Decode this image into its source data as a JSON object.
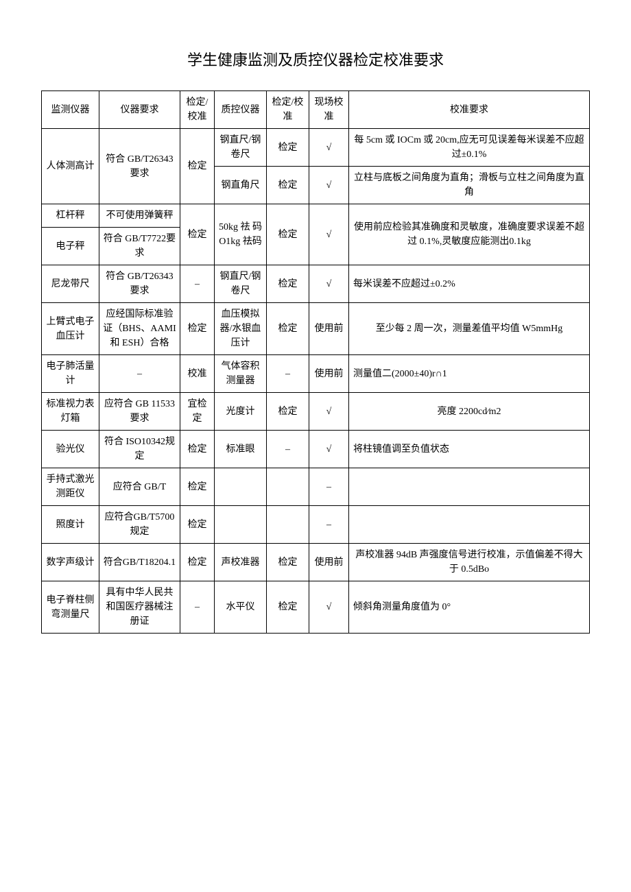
{
  "title": "学生健康监测及质控仪器检定校准要求",
  "headers": {
    "c1": "监测仪器",
    "c2": "仪器要求",
    "c3": "检定/校准",
    "c4": "质控仪器",
    "c5": "检定/校准",
    "c6": "现场校准",
    "c7": "校准要求"
  },
  "rows": {
    "r1": {
      "instrument": "人体测高计",
      "req": "符合 GB/T26343要求",
      "verify": "检定",
      "qc1": "钢直尺/钢卷尺",
      "qc1_verify": "检定",
      "qc1_onsite": "√",
      "qc1_calib": "每 5cm 或 IOCm 或 20cm,应无可见误差每米误差不应超过±0.1%",
      "qc2": "钢直角尺",
      "qc2_verify": "检定",
      "qc2_onsite": "√",
      "qc2_calib": "立柱与底板之间角度为直角；滑板与立柱之间角度为直角"
    },
    "r2": {
      "instrument1": "杠杆秤",
      "instrument2": "电子秤",
      "req1": "不可使用弹簧秤",
      "req2": "符合 GB/T7722要求",
      "verify": "检定",
      "qc": "50kg 祛 码O1kg 祛码",
      "qc_verify": "检定",
      "qc_onsite": "√",
      "qc_calib": "使用前应检验其准确度和灵敏度，准确度要求误差不超过 0.1%,灵敏度应能测出0.1kg"
    },
    "r3": {
      "instrument": "尼龙带尺",
      "req": "符合 GB/T26343要求",
      "verify": "–",
      "qc": "钢直尺/钢卷尺",
      "qc_verify": "检定",
      "qc_onsite": "√",
      "qc_calib": "每米误差不应超过±0.2%"
    },
    "r4": {
      "instrument": "上臂式电子血压计",
      "req": "应经国际标准验证（BHS、AAMI和 ESH）合格",
      "verify": "检定",
      "qc": "血压模拟器/水银血压计",
      "qc_verify": "检定",
      "qc_onsite": "使用前",
      "qc_calib": "至少每 2 周一次，测量差值平均值 W5mmHg"
    },
    "r5": {
      "instrument": "电子肺活量计",
      "req": "–",
      "verify": "校准",
      "qc": "气体容积测量器",
      "qc_verify": "–",
      "qc_onsite": "使用前",
      "qc_calib": "测量值二(2000±40)r∩1"
    },
    "r6": {
      "instrument": "标准视力表灯箱",
      "req": "应符合 GB 11533 要求",
      "verify": "宜检定",
      "qc": "光度计",
      "qc_verify": "检定",
      "qc_onsite": "√",
      "qc_calib": "亮度 2200cd⁄m2"
    },
    "r7": {
      "instrument": "验光仪",
      "req": "符合 ISO10342规定",
      "verify": "检定",
      "qc": "标准眼",
      "qc_verify": "–",
      "qc_onsite": "√",
      "qc_calib": "将柱镜值调至负值状态"
    },
    "r8": {
      "instrument": "手持式激光测距仪",
      "req": "应符合 GB/T",
      "verify": "检定",
      "qc": "",
      "qc_verify": "",
      "qc_onsite": "–",
      "qc_calib": ""
    },
    "r9": {
      "instrument": "照度计",
      "req": "应符合GB/T5700 规定",
      "verify": "检定",
      "qc": "",
      "qc_verify": "",
      "qc_onsite": "–",
      "qc_calib": ""
    },
    "r10": {
      "instrument": "数字声级计",
      "req": "符合GB/T18204.1",
      "verify": "检定",
      "qc": "声校准器",
      "qc_verify": "检定",
      "qc_onsite": "使用前",
      "qc_calib": "声校准器 94dB 声强度信号进行校准，示值偏差不得大于 0.5dBo"
    },
    "r11": {
      "instrument": "电子脊柱侧弯测量尺",
      "req": "具有中华人民共和国医疗器械注册证",
      "verify": "–",
      "qc": "水平仪",
      "qc_verify": "检定",
      "qc_onsite": "√",
      "qc_calib": "倾斜角测量角度值为 0°"
    }
  }
}
